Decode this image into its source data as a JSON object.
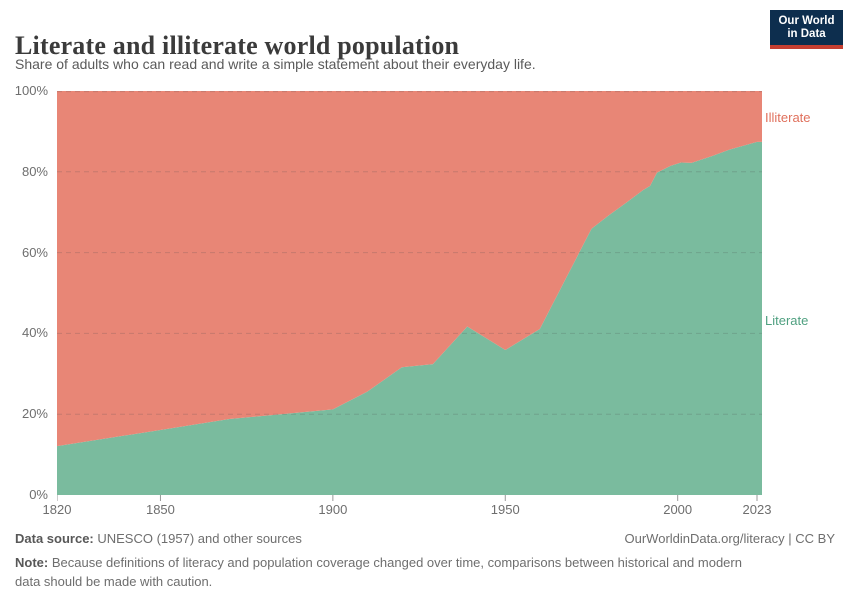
{
  "header": {
    "title": "Literate and illiterate world population",
    "subtitle": "Share of adults who can read and write a simple statement about their everyday life."
  },
  "logo": {
    "line1": "Our World",
    "line2": "in Data",
    "bg_color": "#0d2e4e",
    "accent_color": "#c63f31"
  },
  "chart_data": {
    "type": "area",
    "stacked": true,
    "unit": "%",
    "title": "Literate and illiterate world population",
    "x_range": [
      1820,
      2023
    ],
    "ylim": [
      0,
      100
    ],
    "grid": "dashed-horizontal",
    "legend_position": "right-edge-labels",
    "x_ticks": [
      "1820",
      "1850",
      "1900",
      "1950",
      "2000",
      "2023"
    ],
    "y_ticks": [
      {
        "value": 0,
        "label": "0%"
      },
      {
        "value": 20,
        "label": "20%"
      },
      {
        "value": 40,
        "label": "40%"
      },
      {
        "value": 60,
        "label": "60%"
      },
      {
        "value": 80,
        "label": "80%"
      },
      {
        "value": 100,
        "label": "100%"
      }
    ],
    "series": [
      {
        "name": "Literate",
        "color": "#7abb9e",
        "label_color": "#4fa080",
        "points": [
          [
            1820,
            12.1
          ],
          [
            1850,
            16.1
          ],
          [
            1870,
            18.8
          ],
          [
            1900,
            21.2
          ],
          [
            1910,
            25.6
          ],
          [
            1920,
            31.6
          ],
          [
            1929,
            32.4
          ],
          [
            1939,
            41.7
          ],
          [
            1950,
            35.9
          ],
          [
            1960,
            41.1
          ],
          [
            1975,
            65.9
          ],
          [
            1980,
            69.2
          ],
          [
            1985,
            72.3
          ],
          [
            1990,
            75.5
          ],
          [
            1992,
            76.5
          ],
          [
            1994,
            79.8
          ],
          [
            1998,
            81.5
          ],
          [
            2001,
            82.3
          ],
          [
            2004,
            82.2
          ],
          [
            2010,
            83.9
          ],
          [
            2015,
            85.5
          ],
          [
            2023,
            87.4
          ]
        ]
      },
      {
        "name": "Illiterate",
        "color": "#e88676",
        "label_color": "#e0705c",
        "derived": "100 minus Literate (stacked remainder to 100%)"
      }
    ]
  },
  "footer": {
    "datasource_label": "Data source:",
    "datasource_text": " UNESCO (1957) and other sources",
    "link_text": "OurWorldinData.org/literacy | CC BY",
    "note_label": "Note:",
    "note_text": " Because definitions of literacy and population coverage changed over time, comparisons between historical and modern data should be made with caution."
  }
}
